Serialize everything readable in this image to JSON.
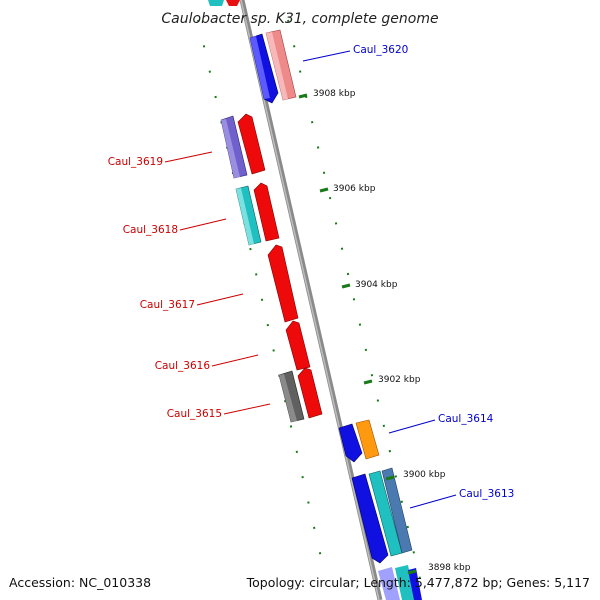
{
  "title": "Caulobacter sp. K31, complete genome",
  "footer": {
    "accession": "Accession: NC_010338",
    "summary": "Topology: circular; Length: 5,477,872 bp; Genes: 5,117"
  },
  "colors": {
    "backbone": "#7a7a7a",
    "tick": "#1a7a1a",
    "reverse_label": "#cc0000",
    "forward_label": "#0000cc"
  },
  "ticks": [
    "3908 kbp",
    "3906 kbp",
    "3904 kbp",
    "3902 kbp",
    "3900 kbp",
    "3898 kbp"
  ],
  "genes_reverse": [
    "Caul_3619",
    "Caul_3618",
    "Caul_3617",
    "Caul_3616",
    "Caul_3615"
  ],
  "genes_forward": [
    "Caul_3620",
    "Caul_3614",
    "Caul_3613"
  ]
}
